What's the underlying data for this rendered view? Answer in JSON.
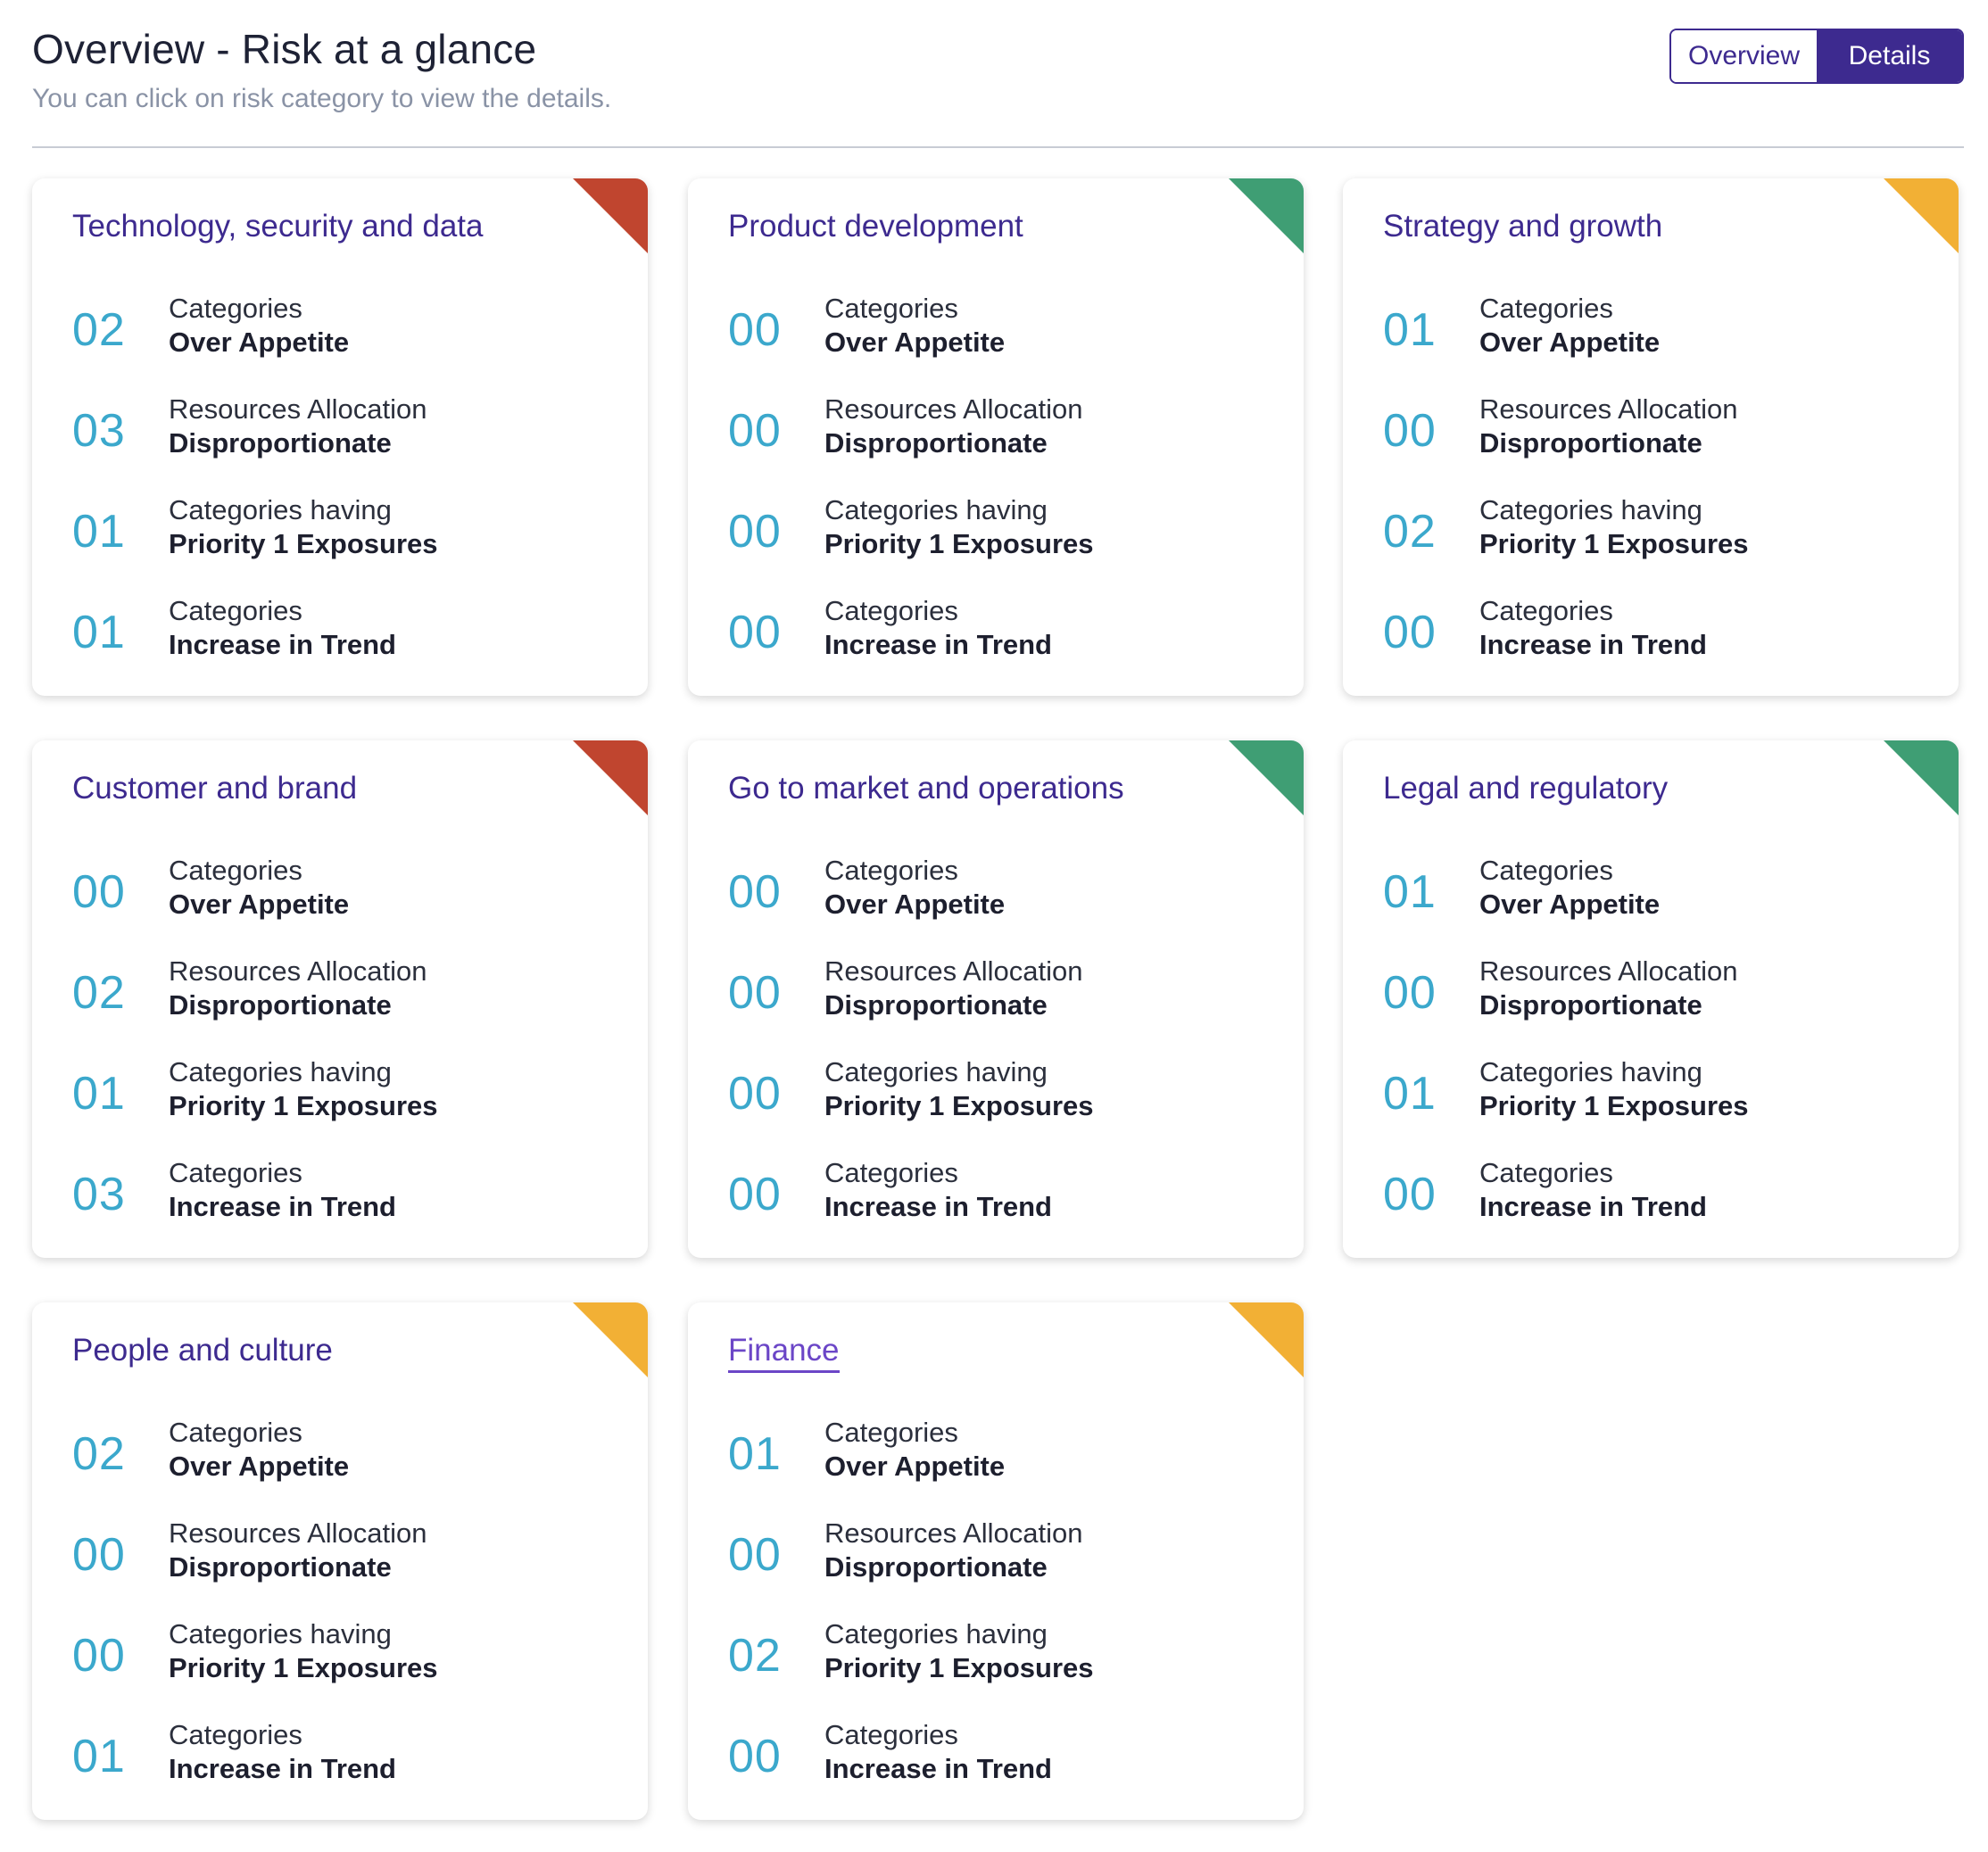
{
  "header": {
    "title": "Overview - Risk at a glance",
    "subtitle": "You can click on risk category to view the details.",
    "toggle": {
      "overview": "Overview",
      "details": "Details",
      "active": "Details"
    }
  },
  "colors": {
    "red": "#c0452f",
    "green": "#3f9e74",
    "amber": "#f2b035",
    "accent": "#3d2a8f",
    "value": "#3ba8cc"
  },
  "labels": {
    "over_appetite": [
      "Categories",
      "Over Appetite"
    ],
    "resources": [
      "Resources Allocation",
      "Disproportionate"
    ],
    "priority": [
      "Categories having",
      "Priority 1 Exposures"
    ],
    "trend": [
      "Categories",
      "Increase in Trend"
    ]
  },
  "cards": [
    {
      "title": "Technology, security and data",
      "status": "red",
      "values": [
        "02",
        "03",
        "01",
        "01"
      ]
    },
    {
      "title": "Product development",
      "status": "green",
      "values": [
        "00",
        "00",
        "00",
        "00"
      ]
    },
    {
      "title": "Strategy and growth",
      "status": "amber",
      "values": [
        "01",
        "00",
        "02",
        "00"
      ]
    },
    {
      "title": "Customer and brand",
      "status": "red",
      "values": [
        "00",
        "02",
        "01",
        "03"
      ]
    },
    {
      "title": "Go to market and operations",
      "status": "green",
      "values": [
        "00",
        "00",
        "00",
        "00"
      ]
    },
    {
      "title": "Legal and regulatory",
      "status": "green",
      "values": [
        "01",
        "00",
        "01",
        "00"
      ]
    },
    {
      "title": "People and culture",
      "status": "amber",
      "values": [
        "02",
        "00",
        "00",
        "01"
      ]
    },
    {
      "title": "Finance",
      "status": "amber",
      "values": [
        "01",
        "00",
        "02",
        "00"
      ]
    }
  ]
}
